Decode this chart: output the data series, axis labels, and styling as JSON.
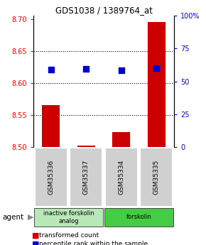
{
  "title": "GDS1038 / 1389764_at",
  "samples": [
    "GSM35336",
    "GSM35337",
    "GSM35334",
    "GSM35335"
  ],
  "red_values": [
    8.565,
    8.502,
    8.523,
    8.695
  ],
  "blue_values": [
    8.621,
    8.622,
    8.62,
    8.623
  ],
  "ylim": [
    8.5,
    8.705
  ],
  "yticks_left": [
    8.5,
    8.55,
    8.6,
    8.65,
    8.7
  ],
  "yticks_right_vals": [
    0,
    25,
    50,
    75,
    100
  ],
  "yticks_right_labels": [
    "0",
    "25",
    "50",
    "75",
    "100%"
  ],
  "groups": [
    {
      "label": "inactive forskolin\nanalog",
      "color": "#b8e8b8",
      "span": [
        0,
        2
      ]
    },
    {
      "label": "forskolin",
      "color": "#44cc44",
      "span": [
        2,
        4
      ]
    }
  ],
  "agent_label": "agent",
  "legend_red": "transformed count",
  "legend_blue": "percentile rank within the sample",
  "bar_color": "#cc0000",
  "dot_color": "#0000cc",
  "bar_width": 0.5,
  "dot_size": 35
}
